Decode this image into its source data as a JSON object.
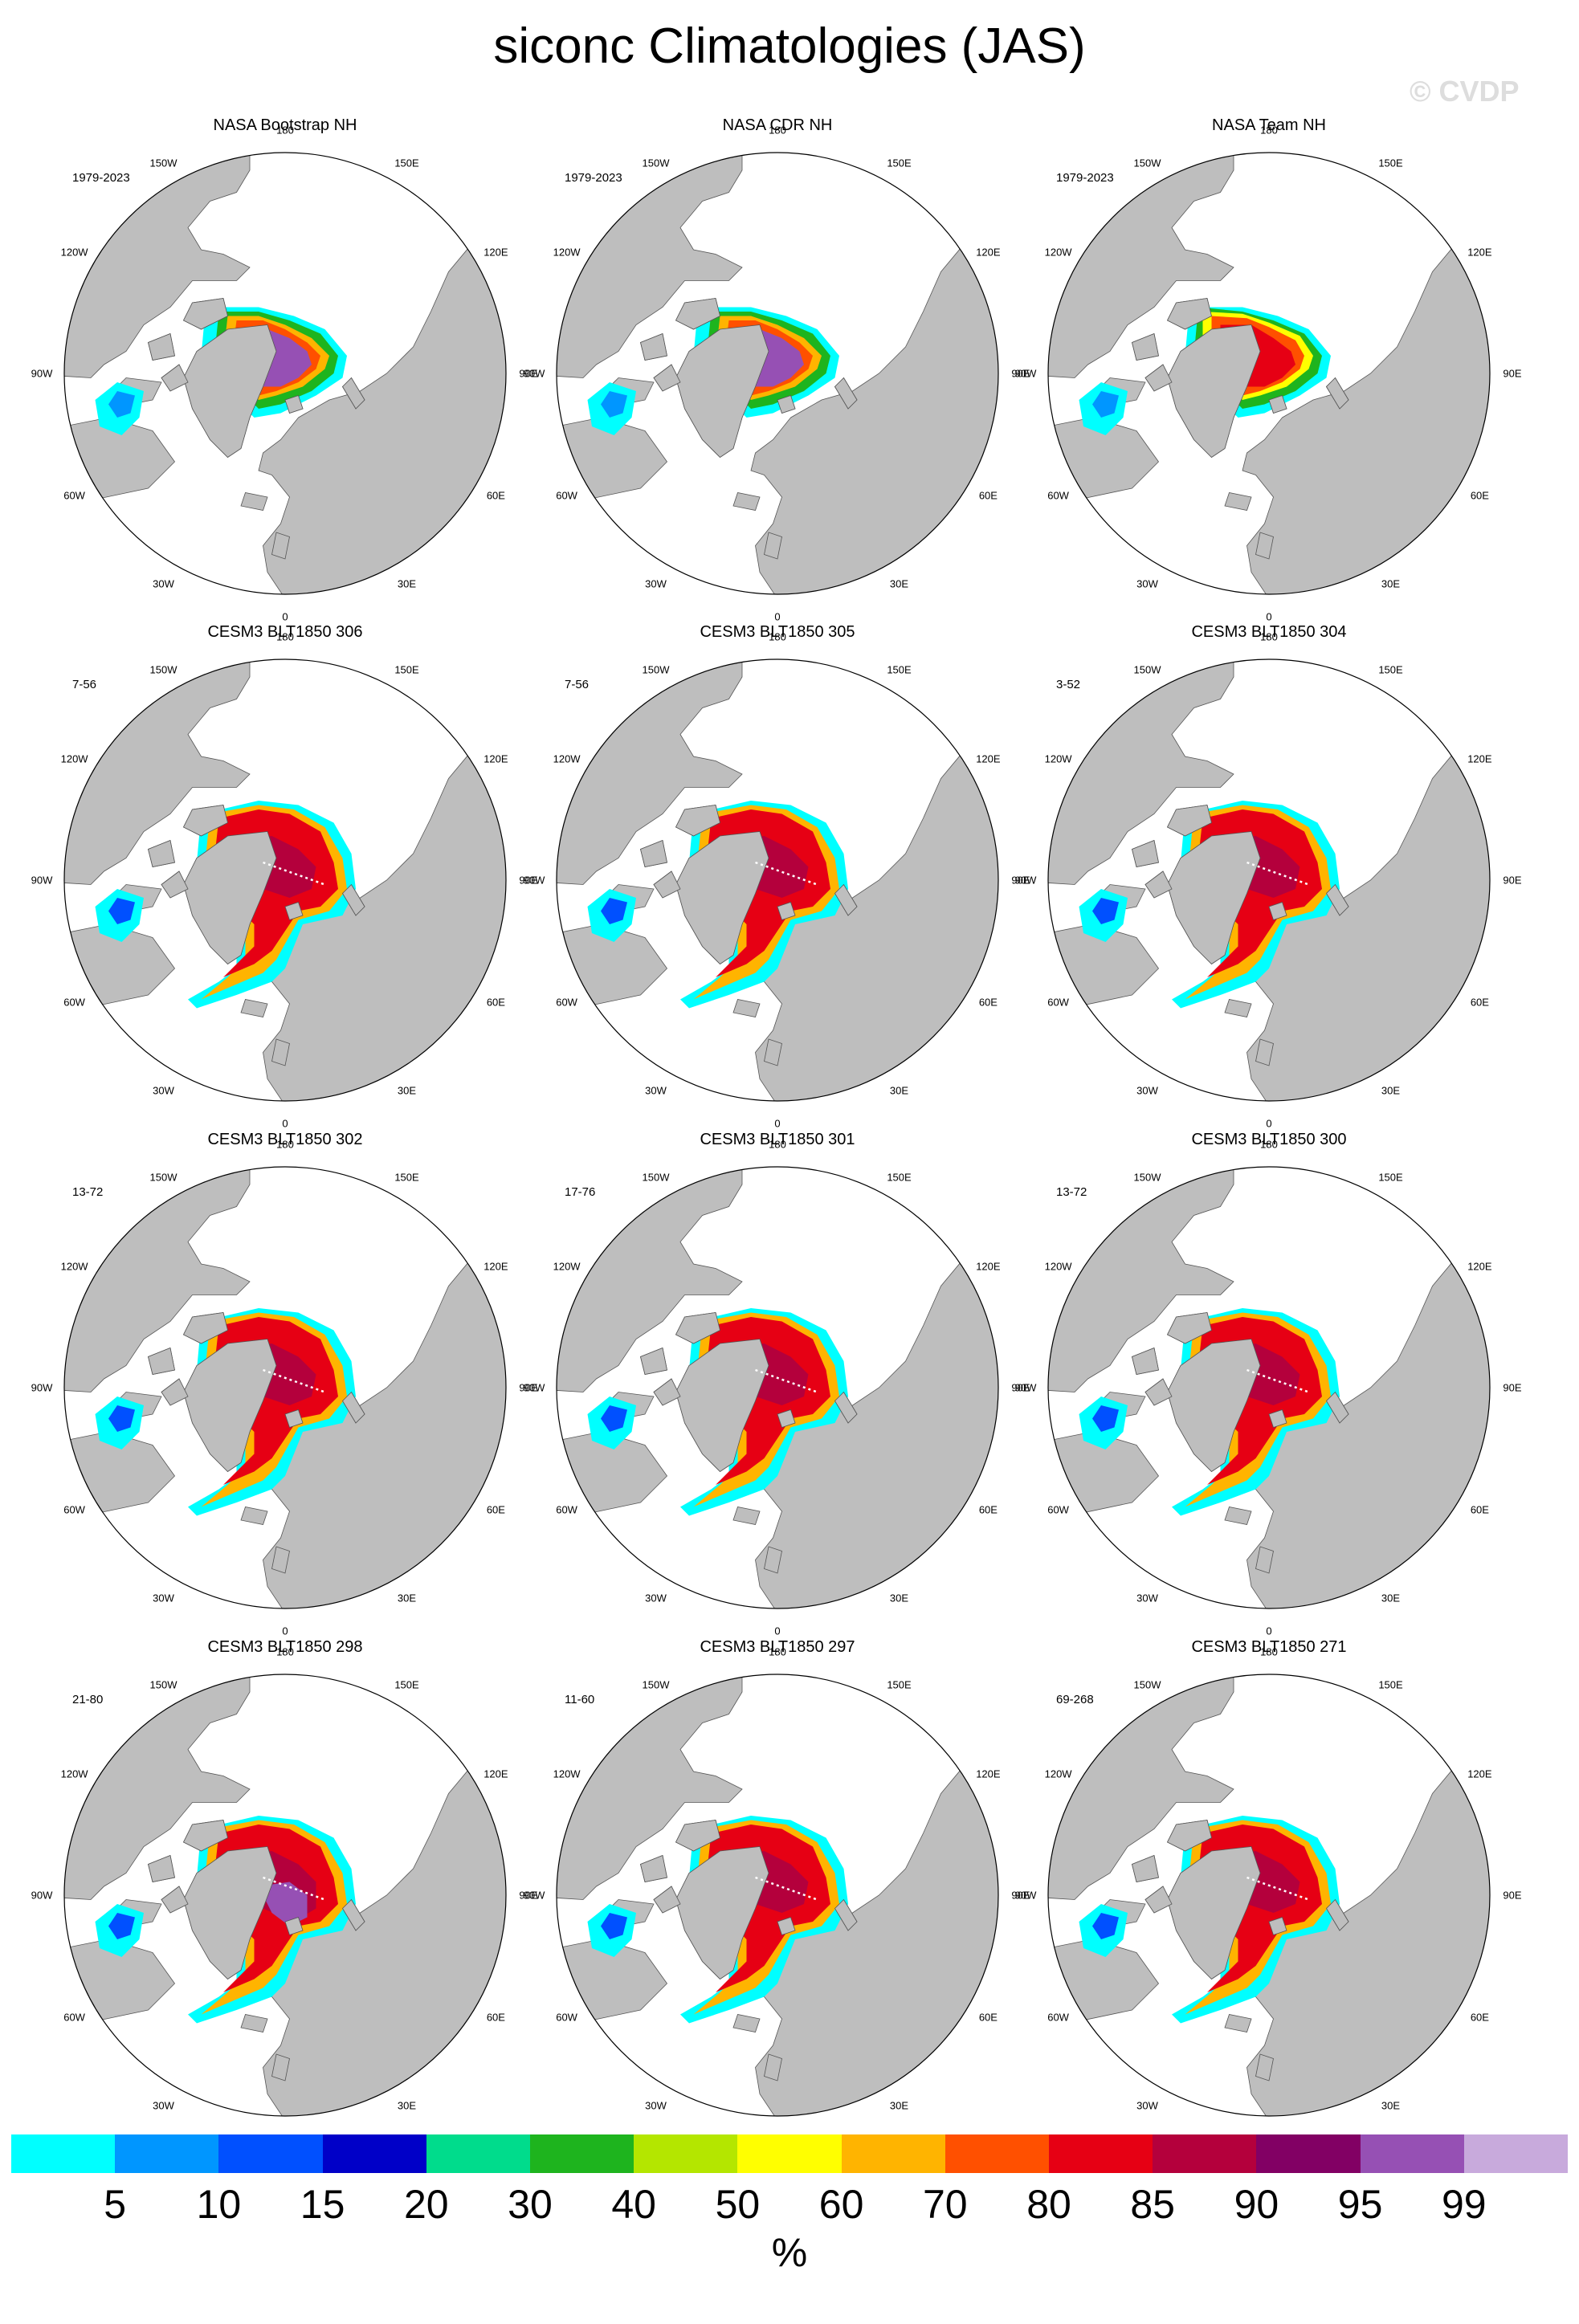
{
  "title": "siconc Climatologies (JAS)",
  "watermark": "© CVDP",
  "lon_labels": [
    "180",
    "150E",
    "120E",
    "90E",
    "60E",
    "30E",
    "0",
    "30W",
    "60W",
    "90W",
    "120W",
    "150W"
  ],
  "panels": [
    {
      "title": "NASA Bootstrap NH",
      "years": "1979-2023",
      "style": "obs_bootstrap"
    },
    {
      "title": "NASA CDR NH",
      "years": "1979-2023",
      "style": "obs_bootstrap"
    },
    {
      "title": "NASA Team NH",
      "years": "1979-2023",
      "style": "obs_team"
    },
    {
      "title": "CESM3 BLT1850 306",
      "years": "7-56",
      "style": "model"
    },
    {
      "title": "CESM3 BLT1850 305",
      "years": "7-56",
      "style": "model"
    },
    {
      "title": "CESM3 BLT1850 304",
      "years": "3-52",
      "style": "model"
    },
    {
      "title": "CESM3 BLT1850 302",
      "years": "13-72",
      "style": "model"
    },
    {
      "title": "CESM3 BLT1850 301",
      "years": "17-76",
      "style": "model"
    },
    {
      "title": "CESM3 BLT1850 300",
      "years": "13-72",
      "style": "model"
    },
    {
      "title": "CESM3 BLT1850 298",
      "years": "21-80",
      "style": "model_purple"
    },
    {
      "title": "CESM3 BLT1850 297",
      "years": "11-60",
      "style": "model"
    },
    {
      "title": "CESM3 BLT1850 271",
      "years": "69-268",
      "style": "model"
    }
  ],
  "colorbar": {
    "colors": [
      "#00ffff",
      "#0096ff",
      "#0050ff",
      "#0000c8",
      "#00dc8c",
      "#1eb41e",
      "#b4e600",
      "#ffff00",
      "#ffb400",
      "#ff5000",
      "#e60014",
      "#b4003c",
      "#820064",
      "#9650b4",
      "#c8aadc"
    ],
    "tick_labels": [
      "5",
      "10",
      "15",
      "20",
      "30",
      "40",
      "50",
      "60",
      "70",
      "80",
      "85",
      "90",
      "95",
      "99"
    ],
    "unit": "%"
  },
  "colors": {
    "land": "#bebebe",
    "ocean": "#ffffff",
    "outline": "#000000"
  }
}
